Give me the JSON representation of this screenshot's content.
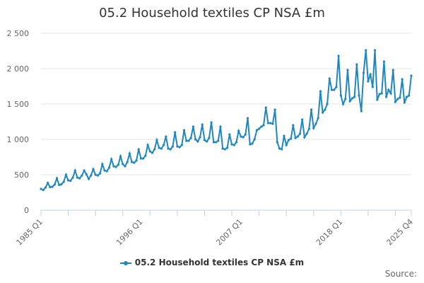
{
  "colors": {
    "series": "#1f87c0",
    "grid": "#e6e6e6",
    "axis": "#c0d0e0",
    "text": "#666666",
    "title": "#333333"
  },
  "credits": "Source:",
  "chart_data": {
    "type": "line",
    "title": "05.2 Household textiles CP NSA £m",
    "xlabel": "",
    "ylabel": "",
    "ylim": [
      0,
      2500
    ],
    "yticks": [
      0,
      500,
      1000,
      1500,
      2000,
      2500
    ],
    "ytick_labels": [
      "0",
      "500",
      "1 000",
      "1 500",
      "2 000",
      "2 500"
    ],
    "xtick_labels": [
      {
        "label": "1985 Q1",
        "index": 0
      },
      {
        "label": "1996 Q1",
        "index": 44
      },
      {
        "label": "2007 Q1",
        "index": 88
      },
      {
        "label": "2018 Q1",
        "index": 132
      },
      {
        "label": "2025 Q4",
        "index": 163
      }
    ],
    "grid": true,
    "legend": "bottom-center",
    "series": [
      {
        "name": "05.2 Household textiles CP NSA £m",
        "start": "1985 Q1",
        "frequency": "quarterly",
        "values": [
          300,
          285,
          320,
          385,
          325,
          330,
          360,
          450,
          355,
          365,
          400,
          500,
          420,
          415,
          460,
          560,
          460,
          450,
          490,
          560,
          505,
          440,
          490,
          580,
          500,
          490,
          520,
          650,
          560,
          550,
          600,
          720,
          620,
          610,
          640,
          760,
          650,
          620,
          680,
          800,
          680,
          670,
          700,
          860,
          730,
          730,
          770,
          920,
          830,
          810,
          860,
          990,
          880,
          870,
          920,
          1040,
          870,
          860,
          900,
          1100,
          900,
          890,
          920,
          1130,
          980,
          980,
          1020,
          1180,
          1000,
          970,
          1030,
          1210,
          990,
          970,
          1020,
          1240,
          960,
          960,
          980,
          1180,
          870,
          860,
          880,
          1070,
          930,
          920,
          960,
          1120,
          1040,
          1030,
          1070,
          1300,
          930,
          940,
          1000,
          1130,
          1150,
          1180,
          1200,
          1450,
          1230,
          1230,
          1220,
          1420,
          960,
          870,
          860,
          1050,
          920,
          990,
          1010,
          1200,
          1020,
          1040,
          1080,
          1280,
          1030,
          1080,
          1150,
          1420,
          1160,
          1220,
          1300,
          1680,
          1380,
          1420,
          1500,
          1860,
          1700,
          1700,
          1740,
          2180,
          1620,
          1500,
          1570,
          1980,
          1540,
          1580,
          1600,
          2060,
          1620,
          1400,
          1940,
          2260,
          1820,
          1920,
          1740,
          2260,
          1560,
          1640,
          1650,
          2100,
          1600,
          1700,
          1650,
          1980,
          1530,
          1570,
          1590,
          1850,
          1520,
          1600,
          1620,
          1900
        ]
      }
    ]
  }
}
